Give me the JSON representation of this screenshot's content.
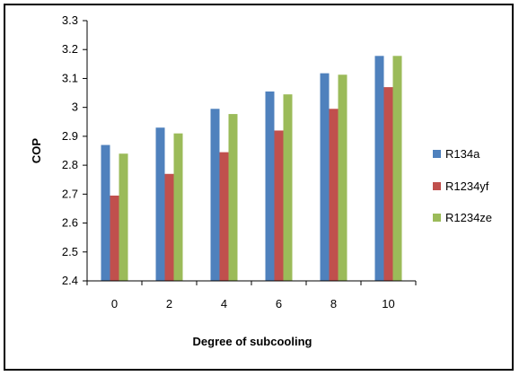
{
  "chart_data": {
    "type": "bar",
    "title": "",
    "xlabel": "Degree of subcooling",
    "ylabel": "COP",
    "categories": [
      "0",
      "2",
      "4",
      "6",
      "8",
      "10"
    ],
    "ylim": [
      2.4,
      3.3
    ],
    "yticks": [
      "2.4",
      "2.5",
      "2.6",
      "2.7",
      "2.8",
      "2.9",
      "3",
      "3.1",
      "3.2",
      "3.3"
    ],
    "grid": false,
    "legend_position": "right",
    "series": [
      {
        "name": "R134a",
        "color": "#4F81BD",
        "values": [
          2.87,
          2.93,
          2.995,
          3.055,
          3.118,
          3.178
        ]
      },
      {
        "name": "R1234yf",
        "color": "#C0504D",
        "values": [
          2.695,
          2.77,
          2.845,
          2.92,
          2.995,
          3.07
        ]
      },
      {
        "name": "R1234ze",
        "color": "#9BBB59",
        "values": [
          2.84,
          2.91,
          2.977,
          3.045,
          3.113,
          3.178
        ]
      }
    ]
  }
}
